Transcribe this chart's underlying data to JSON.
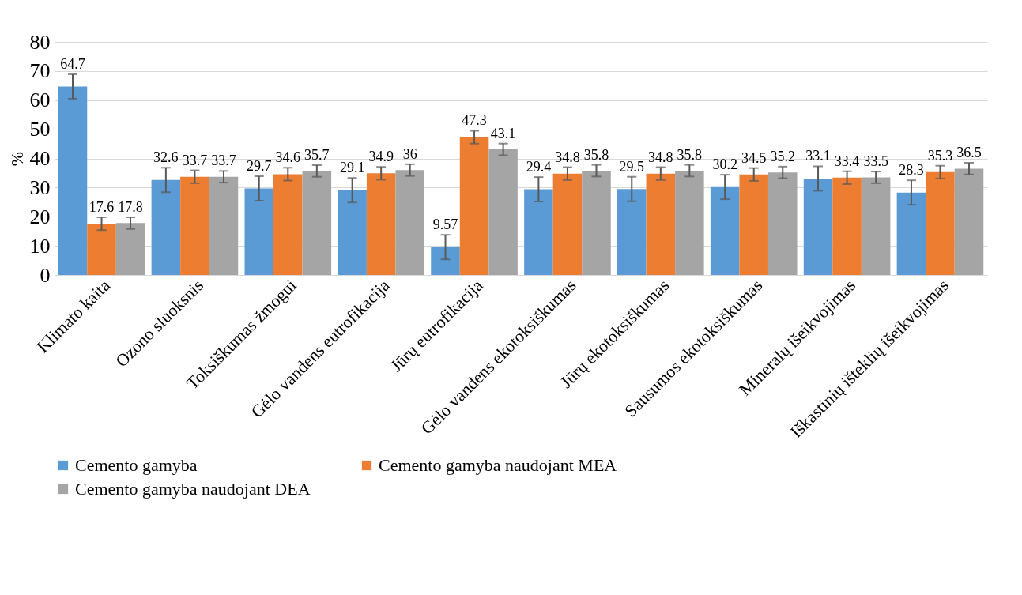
{
  "chart_data": {
    "type": "bar",
    "ylabel": "%",
    "categories": [
      "Klimato kaita",
      "Ozono sluoksnis",
      "Toksiškumas žmogui",
      "Gėlo vandens eutrofikacija",
      "Jūrų eutrofikacija",
      "Gėlo vandens ekotoksiškumas",
      "Jūrų ekotoksiškumas",
      "Sausumos ekotoksiškumas",
      "Mineralų išeikvojimas",
      "Iškastinių išteklių išeikvojimas"
    ],
    "series": [
      {
        "name": "Cemento gamyba",
        "color": "#5b9bd5",
        "values": [
          64.7,
          32.6,
          29.7,
          29.1,
          9.57,
          29.4,
          29.5,
          30.2,
          33.1,
          28.3
        ],
        "errors": [
          4.2,
          4.2,
          4.2,
          4.2,
          4.2,
          4.2,
          4.2,
          4.2,
          4.2,
          4.2
        ]
      },
      {
        "name": "Cemento gamyba naudojant MEA",
        "color": "#ed7d31",
        "values": [
          17.6,
          33.7,
          34.6,
          34.9,
          47.3,
          34.8,
          34.8,
          34.5,
          33.4,
          35.3
        ],
        "errors": [
          2.2,
          2.2,
          2.2,
          2.2,
          2.2,
          2.2,
          2.2,
          2.2,
          2.2,
          2.2
        ]
      },
      {
        "name": "Cemento gamyba naudojant DEA",
        "color": "#a5a5a5",
        "values": [
          17.8,
          33.7,
          35.7,
          36,
          43.1,
          35.8,
          35.8,
          35.2,
          33.5,
          36.5
        ],
        "errors": [
          2,
          2,
          2,
          2,
          2,
          2,
          2,
          2,
          2,
          2
        ]
      }
    ],
    "ylim": [
      0,
      80
    ],
    "yticks": [
      0,
      10,
      20,
      30,
      40,
      50,
      60,
      70,
      80
    ],
    "grid": "y",
    "legend": "bottom",
    "data_labels": true
  }
}
